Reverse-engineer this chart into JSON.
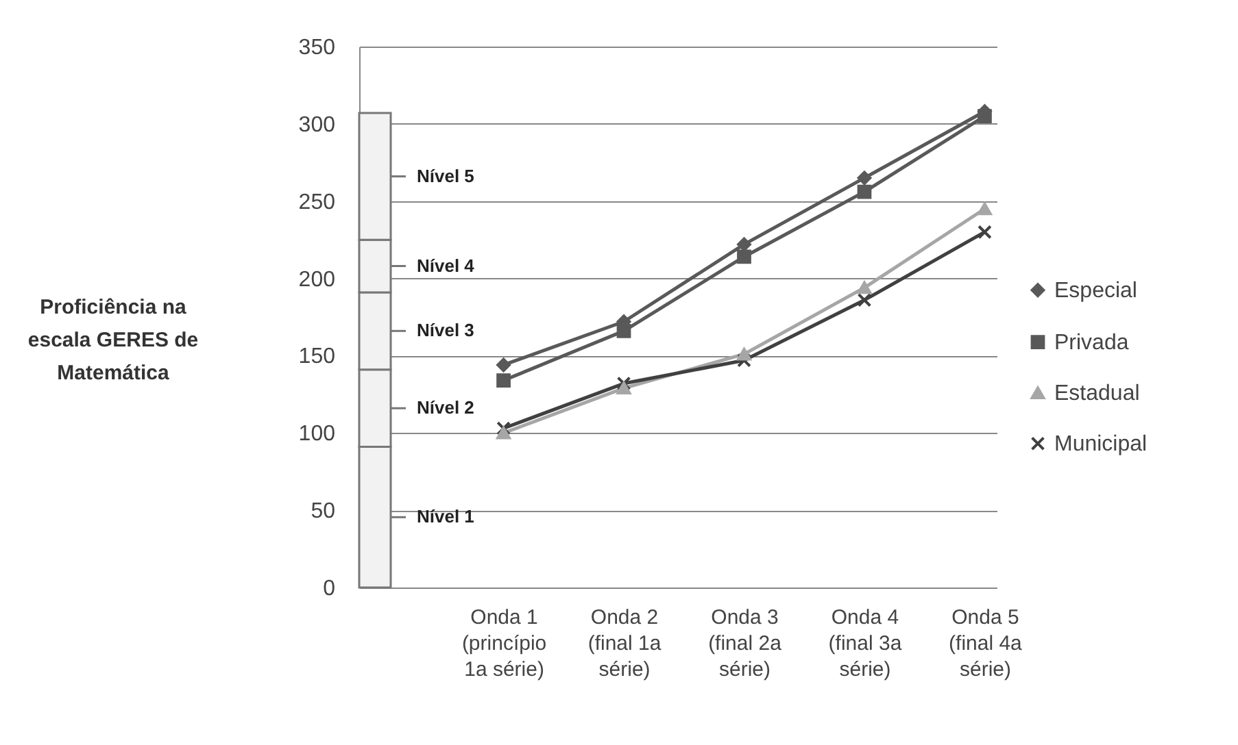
{
  "chart_data": {
    "type": "line",
    "ylabel": "Proficiência na escala GERES de Matemática",
    "categories": [
      "Onda 1 (princípio 1a série)",
      "Onda 2 (final 1a série)",
      "Onda 3 (final 2a série)",
      "Onda 4 (final 3a série)",
      "Onda 5 (final 4a série)"
    ],
    "series": [
      {
        "name": "Especial",
        "color": "#595959",
        "marker": "diamond",
        "values": [
          144,
          172,
          222,
          265,
          308
        ]
      },
      {
        "name": "Privada",
        "color": "#595959",
        "marker": "square",
        "values": [
          134,
          166,
          214,
          256,
          305
        ]
      },
      {
        "name": "Estadual",
        "color": "#a6a6a6",
        "marker": "triangle",
        "values": [
          100,
          129,
          151,
          194,
          245
        ]
      },
      {
        "name": "Municipal",
        "color": "#404040",
        "marker": "cross",
        "values": [
          103,
          132,
          147,
          186,
          230
        ]
      }
    ],
    "ylim": [
      0,
      350
    ],
    "yticks": [
      0,
      50,
      100,
      150,
      200,
      250,
      300,
      350
    ],
    "grid": "y",
    "legend": "right",
    "bands": [
      {
        "axis": "y",
        "from": 0,
        "to": 91,
        "label": "Nível 1"
      },
      {
        "axis": "y",
        "from": 91,
        "to": 141,
        "label": "Nível 2"
      },
      {
        "axis": "y",
        "from": 141,
        "to": 191,
        "label": "Nível 3"
      },
      {
        "axis": "y",
        "from": 191,
        "to": 225,
        "label": "Nível 4"
      },
      {
        "axis": "y",
        "from": 225,
        "to": 307,
        "label": "Nível 5"
      }
    ]
  }
}
